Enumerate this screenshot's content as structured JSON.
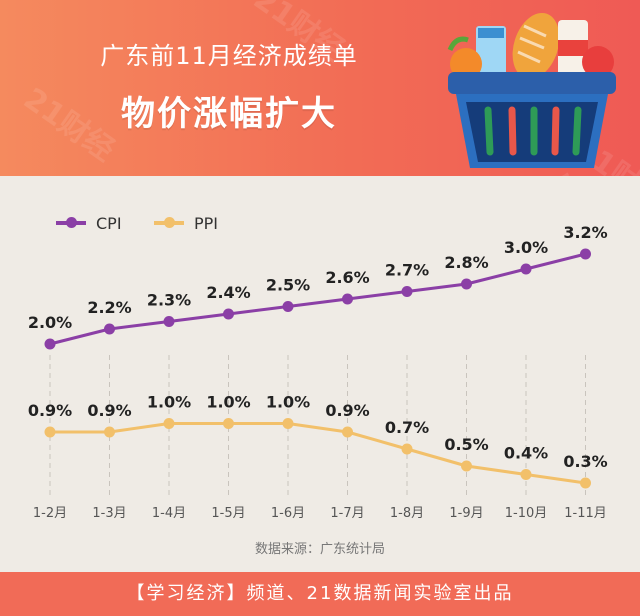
{
  "header": {
    "title": "广东前11月经济成绩单",
    "subtitle": "物价涨幅扩大",
    "watermark": "21财经"
  },
  "colors": {
    "cpi": "#8b3fa6",
    "ppi": "#f2c06a",
    "header_start": "#f58a5e",
    "header_end": "#ef5a55",
    "footer": "#f16b57"
  },
  "chart_data": {
    "type": "line",
    "categories": [
      "1-2月",
      "1-3月",
      "1-4月",
      "1-5月",
      "1-6月",
      "1-7月",
      "1-8月",
      "1-9月",
      "1-10月",
      "1-11月"
    ],
    "series": [
      {
        "name": "CPI",
        "values": [
          2.0,
          2.2,
          2.3,
          2.4,
          2.5,
          2.6,
          2.7,
          2.8,
          3.0,
          3.2
        ],
        "labels": [
          "2.0%",
          "2.2%",
          "2.3%",
          "2.4%",
          "2.5%",
          "2.6%",
          "2.7%",
          "2.8%",
          "3.0%",
          "3.2%"
        ]
      },
      {
        "name": "PPI",
        "values": [
          0.9,
          0.9,
          1.0,
          1.0,
          1.0,
          0.9,
          0.7,
          0.5,
          0.4,
          0.3
        ],
        "labels": [
          "0.9%",
          "0.9%",
          "1.0%",
          "1.0%",
          "1.0%",
          "0.9%",
          "0.7%",
          "0.5%",
          "0.4%",
          "0.3%"
        ]
      }
    ],
    "legend_position": "top-left",
    "grid": "vertical-dashed"
  },
  "source": "数据来源：广东统计局",
  "footer": "【学习经济】频道、21数据新闻实验室出品"
}
